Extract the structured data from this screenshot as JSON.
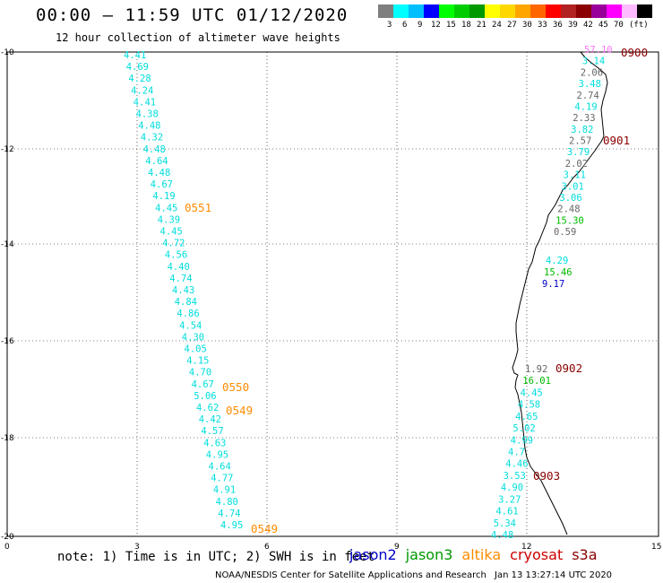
{
  "title": "00:00 – 11:59 UTC 01/12/2020",
  "subtitle": "12 hour collection of altimeter wave heights",
  "legend": {
    "colors": [
      "#7f7f7f",
      "#00ffff",
      "#00bfff",
      "#0000ff",
      "#00ff00",
      "#00cd00",
      "#009900",
      "#ffff00",
      "#ffd700",
      "#ffa500",
      "#ff6600",
      "#ff0000",
      "#b22222",
      "#8b0000",
      "#990099",
      "#ff00ff",
      "#ffbbff",
      "#000000"
    ],
    "labels": [
      "3",
      "6",
      "9",
      "12",
      "15",
      "18",
      "21",
      "24",
      "27",
      "30",
      "33",
      "36",
      "39",
      "42",
      "45",
      "70",
      "(ft)"
    ]
  },
  "axes": {
    "y_labels": [
      "-10",
      "-12",
      "-14",
      "-16",
      "-18",
      "-20"
    ],
    "x_labels": [
      "0",
      "3",
      "6",
      "9",
      "12",
      "15"
    ]
  },
  "passes": [
    {
      "label": "0551",
      "color": "#ff8c00"
    },
    {
      "label": "0550",
      "color": "#ff8c00"
    },
    {
      "label": "0549",
      "color": "#ff8c00"
    },
    {
      "label": "0549",
      "color": "#ff8c00"
    },
    {
      "label": "0900",
      "color": "#8b0000"
    },
    {
      "label": "0901",
      "color": "#8b0000"
    },
    {
      "label": "0902",
      "color": "#8b0000"
    },
    {
      "label": "0903",
      "color": "#8b0000"
    }
  ],
  "tracks": {
    "left": [
      "4.41",
      "4.69",
      "4.28",
      "4.24",
      "4.41",
      "4.38",
      "4.48",
      "4.32",
      "4.48",
      "4.64",
      "4.48",
      "4.67",
      "4.19",
      "4.45",
      "4.39",
      "4.45",
      "4.72",
      "4.56",
      "4.40",
      "4.74",
      "4.43",
      "4.84",
      "4.86",
      "4.54",
      "4.30",
      "4.05",
      "4.15",
      "4.70",
      "4.67",
      "5.06",
      "4.62",
      "4.42",
      "4.57",
      "4.63",
      "4.95",
      "4.64",
      "4.77",
      "4.91",
      "4.80",
      "4.74",
      "4.95"
    ],
    "right_top": [
      {
        "v": "57.10",
        "c": "#ff77ff"
      },
      {
        "v": "3.14",
        "c": "#00dddd"
      },
      {
        "v": "2.06",
        "c": "#666666"
      },
      {
        "v": "3.48",
        "c": "#00dddd"
      },
      {
        "v": "2.74",
        "c": "#666666"
      },
      {
        "v": "4.19",
        "c": "#00dddd"
      },
      {
        "v": "2.33",
        "c": "#666666"
      },
      {
        "v": "3.82",
        "c": "#00dddd"
      },
      {
        "v": "2.57",
        "c": "#666666"
      },
      {
        "v": "3.79",
        "c": "#00dddd"
      },
      {
        "v": "2.02",
        "c": "#666666"
      },
      {
        "v": "3.11",
        "c": "#00dddd"
      },
      {
        "v": "3.01",
        "c": "#00dddd"
      },
      {
        "v": "3.06",
        "c": "#00dddd"
      },
      {
        "v": "2.48",
        "c": "#666666"
      },
      {
        "v": "15.30",
        "c": "#00bb00"
      },
      {
        "v": "0.59",
        "c": "#666666"
      }
    ],
    "right_mid": [
      {
        "v": "4.29",
        "c": "#00dddd"
      },
      {
        "v": "15.46",
        "c": "#00bb00"
      },
      {
        "v": "9.17",
        "c": "#0000cc"
      }
    ],
    "right_bottom": [
      {
        "v": "1.92",
        "c": "#666666"
      },
      {
        "v": "16.01",
        "c": "#00bb00"
      },
      {
        "v": "4.45",
        "c": "#00dddd"
      },
      {
        "v": "4.58",
        "c": "#00dddd"
      },
      {
        "v": "4.65",
        "c": "#00dddd"
      },
      {
        "v": "5.02",
        "c": "#00dddd"
      },
      {
        "v": "4.99",
        "c": "#00dddd"
      },
      {
        "v": "4.7",
        "c": "#00dddd"
      },
      {
        "v": "4.46",
        "c": "#00dddd"
      },
      {
        "v": "3.53",
        "c": "#00dddd"
      },
      {
        "v": "4.90",
        "c": "#00dddd"
      },
      {
        "v": "3.27",
        "c": "#00dddd"
      },
      {
        "v": "4.61",
        "c": "#00dddd"
      },
      {
        "v": "5.34",
        "c": "#00dddd"
      },
      {
        "v": "4.48",
        "c": "#00dddd"
      }
    ]
  },
  "note": "note: 1) Time is in UTC; 2) SWH is in feet",
  "satellites": [
    {
      "name": "jason2",
      "color": "#0000cc"
    },
    {
      "name": "jason3",
      "color": "#009900"
    },
    {
      "name": "altika",
      "color": "#ff8c00"
    },
    {
      "name": "cryosat",
      "color": "#cc0000"
    },
    {
      "name": "s3a",
      "color": "#8b0000"
    }
  ],
  "footer_left": "NOAA/NESDIS Center for Satellite Applications and Research",
  "footer_right": "Jan 13 13:27:14 UTC 2020"
}
